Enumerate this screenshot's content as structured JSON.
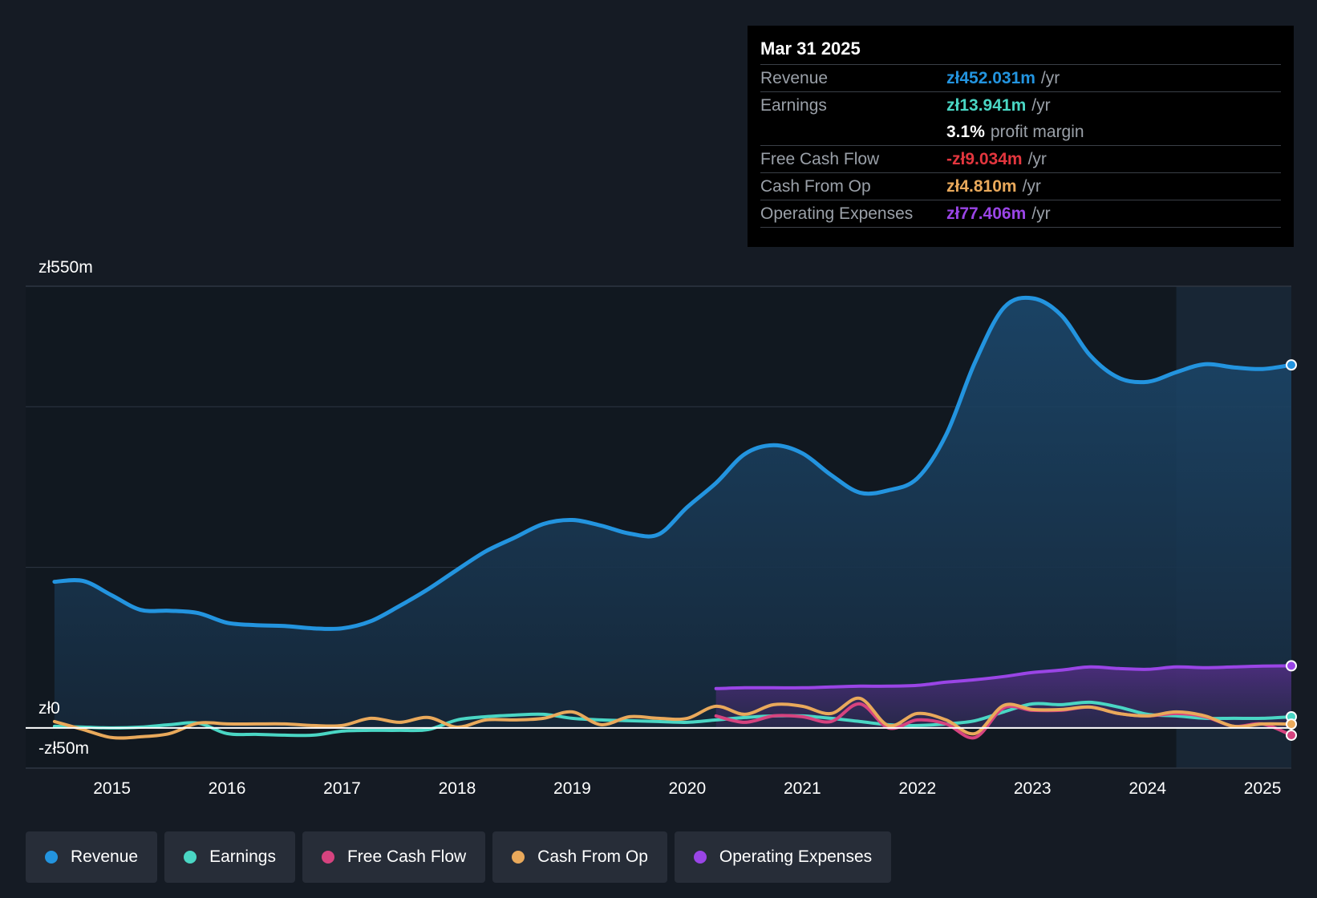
{
  "chart_data": {
    "type": "line",
    "ylabel_top": "zł550m",
    "ylabel_zero": "zł0",
    "ylabel_bottom": "-zł50m",
    "ylim": [
      -50,
      550
    ],
    "xlim": [
      2014.25,
      2025.25
    ],
    "x_ticks": [
      "2015",
      "2016",
      "2017",
      "2018",
      "2019",
      "2020",
      "2021",
      "2022",
      "2023",
      "2024",
      "2025"
    ],
    "forecast_shade_start": 2024.25,
    "series": [
      {
        "name": "Revenue",
        "color": "#2394df",
        "fill": true,
        "points": [
          [
            2014.5,
            182
          ],
          [
            2014.75,
            183
          ],
          [
            2015.0,
            165
          ],
          [
            2015.25,
            147
          ],
          [
            2015.5,
            146
          ],
          [
            2015.75,
            143
          ],
          [
            2016.0,
            131
          ],
          [
            2016.25,
            128
          ],
          [
            2016.5,
            127
          ],
          [
            2016.75,
            124
          ],
          [
            2017.0,
            124
          ],
          [
            2017.25,
            133
          ],
          [
            2017.5,
            152
          ],
          [
            2017.75,
            173
          ],
          [
            2018.0,
            197
          ],
          [
            2018.25,
            220
          ],
          [
            2018.5,
            237
          ],
          [
            2018.75,
            254
          ],
          [
            2019.0,
            259
          ],
          [
            2019.25,
            252
          ],
          [
            2019.5,
            242
          ],
          [
            2019.75,
            241
          ],
          [
            2020.0,
            275
          ],
          [
            2020.25,
            305
          ],
          [
            2020.5,
            341
          ],
          [
            2020.75,
            352
          ],
          [
            2021.0,
            342
          ],
          [
            2021.25,
            315
          ],
          [
            2021.5,
            293
          ],
          [
            2021.75,
            296
          ],
          [
            2022.0,
            311
          ],
          [
            2022.25,
            365
          ],
          [
            2022.5,
            455
          ],
          [
            2022.75,
            523
          ],
          [
            2023.0,
            535
          ],
          [
            2023.25,
            514
          ],
          [
            2023.5,
            464
          ],
          [
            2023.75,
            436
          ],
          [
            2024.0,
            431
          ],
          [
            2024.25,
            443
          ],
          [
            2024.5,
            453
          ],
          [
            2024.75,
            449
          ],
          [
            2025.0,
            447
          ],
          [
            2025.25,
            452.031
          ]
        ]
      },
      {
        "name": "Earnings",
        "color": "#4ad6c4",
        "fill": false,
        "points": [
          [
            2014.5,
            2
          ],
          [
            2014.75,
            1
          ],
          [
            2015.0,
            0
          ],
          [
            2015.25,
            1
          ],
          [
            2015.5,
            4
          ],
          [
            2015.75,
            6
          ],
          [
            2016.0,
            -7
          ],
          [
            2016.25,
            -8
          ],
          [
            2016.5,
            -9
          ],
          [
            2016.75,
            -9
          ],
          [
            2017.0,
            -4
          ],
          [
            2017.25,
            -3
          ],
          [
            2017.5,
            -3
          ],
          [
            2017.75,
            -2
          ],
          [
            2018.0,
            10
          ],
          [
            2018.25,
            14
          ],
          [
            2018.5,
            16
          ],
          [
            2018.75,
            17
          ],
          [
            2019.0,
            12
          ],
          [
            2019.25,
            10
          ],
          [
            2019.5,
            9
          ],
          [
            2019.75,
            8
          ],
          [
            2020.0,
            7
          ],
          [
            2020.25,
            10
          ],
          [
            2020.5,
            13
          ],
          [
            2020.75,
            15
          ],
          [
            2021.0,
            15
          ],
          [
            2021.25,
            12
          ],
          [
            2021.5,
            8
          ],
          [
            2021.75,
            4
          ],
          [
            2022.0,
            3
          ],
          [
            2022.25,
            5
          ],
          [
            2022.5,
            9
          ],
          [
            2022.75,
            20
          ],
          [
            2023.0,
            30
          ],
          [
            2023.25,
            29
          ],
          [
            2023.5,
            32
          ],
          [
            2023.75,
            26
          ],
          [
            2024.0,
            17
          ],
          [
            2024.25,
            15
          ],
          [
            2024.5,
            12
          ],
          [
            2024.75,
            12
          ],
          [
            2025.0,
            12
          ],
          [
            2025.25,
            13.941
          ]
        ]
      },
      {
        "name": "Free Cash Flow",
        "color": "#d6437f",
        "fill": false,
        "points": [
          [
            2020.25,
            15
          ],
          [
            2020.5,
            7
          ],
          [
            2020.75,
            15
          ],
          [
            2021.0,
            14
          ],
          [
            2021.25,
            8
          ],
          [
            2021.5,
            30
          ],
          [
            2021.75,
            0
          ],
          [
            2022.0,
            10
          ],
          [
            2022.25,
            5
          ],
          [
            2022.5,
            -12
          ],
          [
            2022.75,
            25
          ],
          [
            2023.0,
            22
          ],
          [
            2023.25,
            22
          ],
          [
            2023.5,
            26
          ],
          [
            2023.75,
            18
          ],
          [
            2024.0,
            15
          ],
          [
            2024.25,
            18
          ],
          [
            2024.5,
            14
          ],
          [
            2024.75,
            2
          ],
          [
            2025.0,
            5
          ],
          [
            2025.25,
            -9.034
          ]
        ]
      },
      {
        "name": "Cash From Op",
        "color": "#e9a95b",
        "fill": false,
        "points": [
          [
            2014.5,
            8
          ],
          [
            2014.75,
            -2
          ],
          [
            2015.0,
            -12
          ],
          [
            2015.25,
            -11
          ],
          [
            2015.5,
            -7
          ],
          [
            2015.75,
            6
          ],
          [
            2016.0,
            5
          ],
          [
            2016.25,
            5
          ],
          [
            2016.5,
            5
          ],
          [
            2016.75,
            3
          ],
          [
            2017.0,
            3
          ],
          [
            2017.25,
            12
          ],
          [
            2017.5,
            7
          ],
          [
            2017.75,
            13
          ],
          [
            2018.0,
            1
          ],
          [
            2018.25,
            10
          ],
          [
            2018.5,
            10
          ],
          [
            2018.75,
            12
          ],
          [
            2019.0,
            20
          ],
          [
            2019.25,
            4
          ],
          [
            2019.5,
            14
          ],
          [
            2019.75,
            12
          ],
          [
            2020.0,
            12
          ],
          [
            2020.25,
            27
          ],
          [
            2020.5,
            17
          ],
          [
            2020.75,
            29
          ],
          [
            2021.0,
            27
          ],
          [
            2021.25,
            18
          ],
          [
            2021.5,
            37
          ],
          [
            2021.75,
            3
          ],
          [
            2022.0,
            18
          ],
          [
            2022.25,
            10
          ],
          [
            2022.5,
            -7
          ],
          [
            2022.75,
            28
          ],
          [
            2023.0,
            23
          ],
          [
            2023.25,
            23
          ],
          [
            2023.5,
            26
          ],
          [
            2023.75,
            18
          ],
          [
            2024.0,
            15
          ],
          [
            2024.25,
            20
          ],
          [
            2024.5,
            15
          ],
          [
            2024.75,
            2
          ],
          [
            2025.0,
            5
          ],
          [
            2025.25,
            4.81
          ]
        ]
      },
      {
        "name": "Operating Expenses",
        "color": "#9a45e6",
        "fill": true,
        "points": [
          [
            2020.25,
            49
          ],
          [
            2020.5,
            50
          ],
          [
            2020.75,
            50
          ],
          [
            2021.0,
            50
          ],
          [
            2021.25,
            51
          ],
          [
            2021.5,
            52
          ],
          [
            2021.75,
            52
          ],
          [
            2022.0,
            53
          ],
          [
            2022.25,
            57
          ],
          [
            2022.5,
            60
          ],
          [
            2022.75,
            64
          ],
          [
            2023.0,
            69
          ],
          [
            2023.25,
            72
          ],
          [
            2023.5,
            76
          ],
          [
            2023.75,
            74
          ],
          [
            2024.0,
            73
          ],
          [
            2024.25,
            76
          ],
          [
            2024.5,
            75
          ],
          [
            2024.75,
            76
          ],
          [
            2025.0,
            77
          ],
          [
            2025.25,
            77.406
          ]
        ]
      }
    ]
  },
  "tooltip": {
    "date": "Mar 31 2025",
    "rows": {
      "revenue": {
        "label": "Revenue",
        "value": "zł452.031m",
        "unit": "/yr",
        "color": "#2394df"
      },
      "earnings": {
        "label": "Earnings",
        "value": "zł13.941m",
        "unit": "/yr",
        "color": "#4ad6c4"
      },
      "margin": {
        "value": "3.1%",
        "text": "profit margin"
      },
      "fcf": {
        "label": "Free Cash Flow",
        "value": "-zł9.034m",
        "unit": "/yr",
        "color": "#e3363e"
      },
      "cfo": {
        "label": "Cash From Op",
        "value": "zł4.810m",
        "unit": "/yr",
        "color": "#e9a95b"
      },
      "opex": {
        "label": "Operating Expenses",
        "value": "zł77.406m",
        "unit": "/yr",
        "color": "#9a45e6"
      }
    }
  },
  "legend": [
    {
      "label": "Revenue",
      "color": "#2394df"
    },
    {
      "label": "Earnings",
      "color": "#4ad6c4"
    },
    {
      "label": "Free Cash Flow",
      "color": "#d6437f"
    },
    {
      "label": "Cash From Op",
      "color": "#e9a95b"
    },
    {
      "label": "Operating Expenses",
      "color": "#9a45e6"
    }
  ]
}
